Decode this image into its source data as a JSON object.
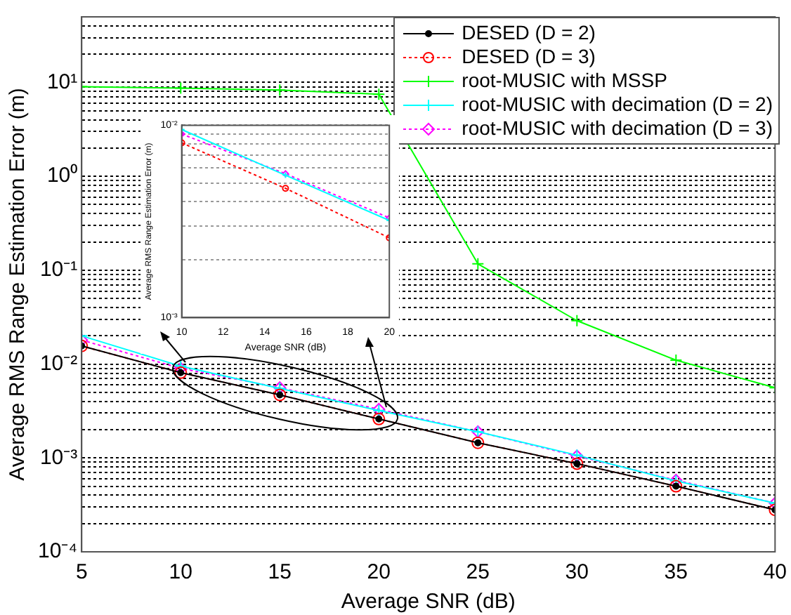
{
  "chart_data": [
    {
      "type": "line",
      "xlabel": "Average SNR (dB)",
      "ylabel": "Average RMS Range Estimation Error (m)",
      "log": "y",
      "grid": "y",
      "legend": "top right",
      "xlim": [
        5,
        40
      ],
      "xticks": [
        5,
        10,
        15,
        20,
        25,
        30,
        35,
        40
      ],
      "ylim": [
        0.0001,
        50
      ],
      "yticks": [
        {
          "value": 0.0001,
          "label": "10⁻⁴"
        },
        {
          "value": 0.0002,
          "label": null
        },
        {
          "value": 0.0003,
          "label": null
        },
        {
          "value": 0.0004,
          "label": null
        },
        {
          "value": 0.0005,
          "label": null
        },
        {
          "value": 0.0006,
          "label": null
        },
        {
          "value": 0.0007,
          "label": null
        },
        {
          "value": 0.0008,
          "label": null
        },
        {
          "value": 0.0009,
          "label": null
        },
        {
          "value": 0.001,
          "label": "10⁻³"
        },
        {
          "value": 0.002,
          "label": null
        },
        {
          "value": 0.003,
          "label": null
        },
        {
          "value": 0.004,
          "label": null
        },
        {
          "value": 0.005,
          "label": null
        },
        {
          "value": 0.006,
          "label": null
        },
        {
          "value": 0.007,
          "label": null
        },
        {
          "value": 0.008,
          "label": null
        },
        {
          "value": 0.009,
          "label": null
        },
        {
          "value": 0.01,
          "label": "10⁻²"
        },
        {
          "value": 0.02,
          "label": null
        },
        {
          "value": 0.03,
          "label": null
        },
        {
          "value": 0.04,
          "label": null
        },
        {
          "value": 0.05,
          "label": null
        },
        {
          "value": 0.06,
          "label": null
        },
        {
          "value": 0.07,
          "label": null
        },
        {
          "value": 0.08,
          "label": null
        },
        {
          "value": 0.09,
          "label": null
        },
        {
          "value": 0.1,
          "label": "10⁻¹"
        },
        {
          "value": 0.2,
          "label": null
        },
        {
          "value": 0.3,
          "label": null
        },
        {
          "value": 0.4,
          "label": null
        },
        {
          "value": 0.5,
          "label": null
        },
        {
          "value": 0.6,
          "label": null
        },
        {
          "value": 0.7,
          "label": null
        },
        {
          "value": 0.8,
          "label": null
        },
        {
          "value": 0.9,
          "label": null
        },
        {
          "value": 1,
          "label": "10⁰"
        },
        {
          "value": 2,
          "label": null
        },
        {
          "value": 3,
          "label": null
        },
        {
          "value": 4,
          "label": null
        },
        {
          "value": 5,
          "label": null
        },
        {
          "value": 6,
          "label": null
        },
        {
          "value": 7,
          "label": null
        },
        {
          "value": 8,
          "label": null
        },
        {
          "value": 9,
          "label": null
        },
        {
          "value": 10,
          "label": "10¹"
        },
        {
          "value": 20,
          "label": null
        },
        {
          "value": 30,
          "label": null
        },
        {
          "value": 40,
          "label": null
        },
        {
          "value": 50,
          "label": null
        }
      ],
      "x": [
        5,
        10,
        15,
        20,
        25,
        30,
        35,
        40
      ],
      "series": [
        {
          "name": "DESED (D = 2)",
          "color": "#000000",
          "marker": "circle",
          "line_style": "solid",
          "values": [
            0.0156,
            0.0081,
            0.0047,
            0.0026,
            0.00145,
            0.00087,
            0.0005,
            0.00028
          ]
        },
        {
          "name": "DESED (D = 3)",
          "color": "#ff0000",
          "marker": "circle",
          "line_style": "dotted",
          "values": [
            0.0156,
            0.0081,
            0.0047,
            0.0026,
            0.00145,
            0.00087,
            0.0005,
            0.00028
          ]
        },
        {
          "name": "root-MUSIC with MSSP",
          "color": "#00ff00",
          "marker": "cross",
          "line_style": "solid",
          "values": [
            9,
            8.7,
            8.3,
            7.5,
            0.117,
            0.029,
            0.011,
            0.0056
          ]
        },
        {
          "name": "root-MUSIC with decimation (D = 2)",
          "color": "#00ffff",
          "marker": "cross",
          "line_style": "solid",
          "values": [
            0.02,
            0.0095,
            0.0055,
            0.0032,
            0.0019,
            0.00107,
            0.00057,
            0.00033
          ]
        },
        {
          "name": "root-MUSIC with decimation (D = 3)",
          "color": "#ff00ff",
          "marker": "diamond",
          "line_style": "dotted",
          "values": [
            0.018,
            0.009,
            0.0056,
            0.0033,
            0.0019,
            0.00105,
            0.00058,
            0.00033
          ]
        }
      ]
    },
    {
      "type": "line",
      "xlabel": "Average SNR (dB)",
      "ylabel": "Average RMS Range Estimation Error (m)",
      "log": "y",
      "grid": "y",
      "xlim": [
        10,
        20
      ],
      "xticks": [
        10,
        12,
        14,
        16,
        18,
        20
      ],
      "ylim": [
        0.001,
        0.01
      ],
      "yticks": [
        {
          "value": 0.001,
          "label": "10⁻³"
        },
        {
          "value": 0.002,
          "label": null
        },
        {
          "value": 0.003,
          "label": null
        },
        {
          "value": 0.004,
          "label": null
        },
        {
          "value": 0.005,
          "label": null
        },
        {
          "value": 0.006,
          "label": null
        },
        {
          "value": 0.007,
          "label": null
        },
        {
          "value": 0.008,
          "label": null
        },
        {
          "value": 0.009,
          "label": null
        },
        {
          "value": 0.01,
          "label": "10⁻²"
        }
      ],
      "x": [
        10,
        15,
        20
      ],
      "series": [
        {
          "color": "#ff0000",
          "marker": "circle",
          "line_style": "dotted",
          "values": [
            0.0081,
            0.0047,
            0.0026
          ]
        },
        {
          "color": "#00ffff",
          "marker": "cross",
          "line_style": "solid",
          "values": [
            0.0095,
            0.0055,
            0.0032
          ]
        },
        {
          "color": "#ff00ff",
          "marker": "diamond",
          "line_style": "dotted",
          "values": [
            0.009,
            0.0056,
            0.0033
          ]
        }
      ]
    }
  ]
}
